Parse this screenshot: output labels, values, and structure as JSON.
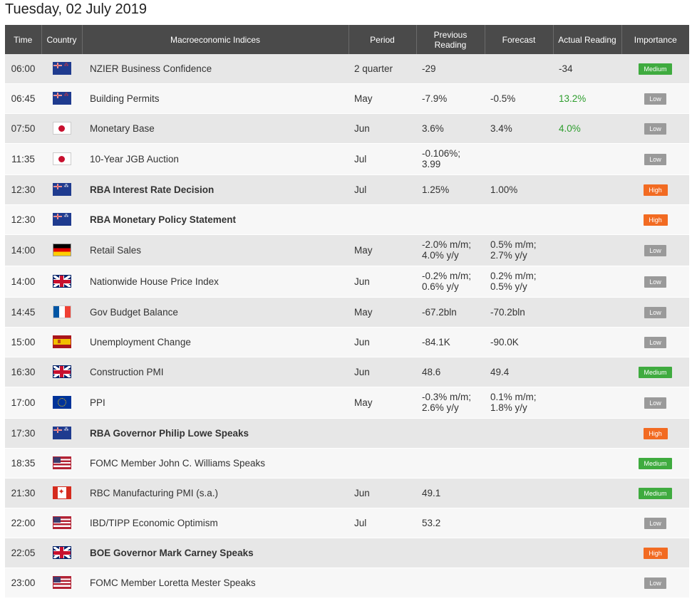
{
  "page": {
    "date_title": "Tuesday, 02 July 2019"
  },
  "header": {
    "time": "Time",
    "country": "Country",
    "indices": "Macroeconomic Indices",
    "period": "Period",
    "previous_line1": "Previous",
    "previous_line2": "Reading",
    "forecast": "Forecast",
    "actual": "Actual Reading",
    "importance": "Importance"
  },
  "colors": {
    "header_bg": "#4a4a4a",
    "row_odd": "#e7e7e7",
    "row_even": "#f7f7f7",
    "low": "#9a9a9a",
    "medium": "#3fab3f",
    "high": "#f26b22",
    "actual_positive": "#2e9e2e"
  },
  "rows": [
    {
      "time": "06:00",
      "country": "nz",
      "name": "NZIER Business Confidence",
      "bold": false,
      "period": "2 quarter",
      "previous": [
        "-29"
      ],
      "forecast": [],
      "actual": "-34",
      "actual_green": false,
      "importance": "Medium"
    },
    {
      "time": "06:45",
      "country": "nz",
      "name": "Building Permits",
      "bold": false,
      "period": "May",
      "previous": [
        "-7.9%"
      ],
      "forecast": [
        "-0.5%"
      ],
      "actual": "13.2%",
      "actual_green": true,
      "importance": "Low"
    },
    {
      "time": "07:50",
      "country": "jp",
      "name": "Monetary Base",
      "bold": false,
      "period": "Jun",
      "previous": [
        "3.6%"
      ],
      "forecast": [
        "3.4%"
      ],
      "actual": "4.0%",
      "actual_green": true,
      "importance": "Low"
    },
    {
      "time": "11:35",
      "country": "jp",
      "name": "10-Year JGB Auction",
      "bold": false,
      "period": "Jul",
      "previous": [
        "-0.106%;",
        "3.99"
      ],
      "forecast": [],
      "actual": "",
      "actual_green": false,
      "importance": "Low"
    },
    {
      "time": "12:30",
      "country": "au",
      "name": "RBA Interest Rate Decision",
      "bold": true,
      "period": "Jul",
      "previous": [
        "1.25%"
      ],
      "forecast": [
        "1.00%"
      ],
      "actual": "",
      "actual_green": false,
      "importance": "High"
    },
    {
      "time": "12:30",
      "country": "au",
      "name": "RBA Monetary Policy Statement",
      "bold": true,
      "period": "",
      "previous": [],
      "forecast": [],
      "actual": "",
      "actual_green": false,
      "importance": "High"
    },
    {
      "time": "14:00",
      "country": "de",
      "name": "Retail Sales",
      "bold": false,
      "period": "May",
      "previous": [
        "-2.0% m/m;",
        "4.0% y/y"
      ],
      "forecast": [
        "0.5% m/m;",
        "2.7% y/y"
      ],
      "actual": "",
      "actual_green": false,
      "importance": "Low"
    },
    {
      "time": "14:00",
      "country": "gb",
      "name": "Nationwide House Price Index",
      "bold": false,
      "period": "Jun",
      "previous": [
        "-0.2% m/m;",
        "0.6% y/y"
      ],
      "forecast": [
        "0.2% m/m;",
        "0.5% y/y"
      ],
      "actual": "",
      "actual_green": false,
      "importance": "Low"
    },
    {
      "time": "14:45",
      "country": "fr",
      "name": "Gov Budget Balance",
      "bold": false,
      "period": "May",
      "previous": [
        "-67.2bln"
      ],
      "forecast": [
        "-70.2bln"
      ],
      "actual": "",
      "actual_green": false,
      "importance": "Low"
    },
    {
      "time": "15:00",
      "country": "es",
      "name": "Unemployment Change",
      "bold": false,
      "period": "Jun",
      "previous": [
        "-84.1K"
      ],
      "forecast": [
        "-90.0K"
      ],
      "actual": "",
      "actual_green": false,
      "importance": "Low"
    },
    {
      "time": "16:30",
      "country": "gb",
      "name": "Construction PMI",
      "bold": false,
      "period": "Jun",
      "previous": [
        "48.6"
      ],
      "forecast": [
        "49.4"
      ],
      "actual": "",
      "actual_green": false,
      "importance": "Medium"
    },
    {
      "time": "17:00",
      "country": "eu",
      "name": "PPI",
      "bold": false,
      "period": "May",
      "previous": [
        "-0.3% m/m;",
        "2.6% y/y"
      ],
      "forecast": [
        "0.1% m/m;",
        "1.8% y/y"
      ],
      "actual": "",
      "actual_green": false,
      "importance": "Low"
    },
    {
      "time": "17:30",
      "country": "au",
      "name": "RBA Governor Philip Lowe Speaks",
      "bold": true,
      "period": "",
      "previous": [],
      "forecast": [],
      "actual": "",
      "actual_green": false,
      "importance": "High"
    },
    {
      "time": "18:35",
      "country": "us",
      "name": "FOMC Member John C. Williams Speaks",
      "bold": false,
      "period": "",
      "previous": [],
      "forecast": [],
      "actual": "",
      "actual_green": false,
      "importance": "Medium"
    },
    {
      "time": "21:30",
      "country": "ca",
      "name": "RBC Manufacturing PMI (s.a.)",
      "bold": false,
      "period": "Jun",
      "previous": [
        "49.1"
      ],
      "forecast": [],
      "actual": "",
      "actual_green": false,
      "importance": "Medium"
    },
    {
      "time": "22:00",
      "country": "us",
      "name": "IBD/TIPP Economic Optimism",
      "bold": false,
      "period": "Jul",
      "previous": [
        "53.2"
      ],
      "forecast": [],
      "actual": "",
      "actual_green": false,
      "importance": "Low"
    },
    {
      "time": "22:05",
      "country": "gb",
      "name": "BOE Governor Mark Carney Speaks",
      "bold": true,
      "period": "",
      "previous": [],
      "forecast": [],
      "actual": "",
      "actual_green": false,
      "importance": "High"
    },
    {
      "time": "23:00",
      "country": "us",
      "name": "FOMC Member Loretta Mester Speaks",
      "bold": false,
      "period": "",
      "previous": [],
      "forecast": [],
      "actual": "",
      "actual_green": false,
      "importance": "Low"
    }
  ]
}
